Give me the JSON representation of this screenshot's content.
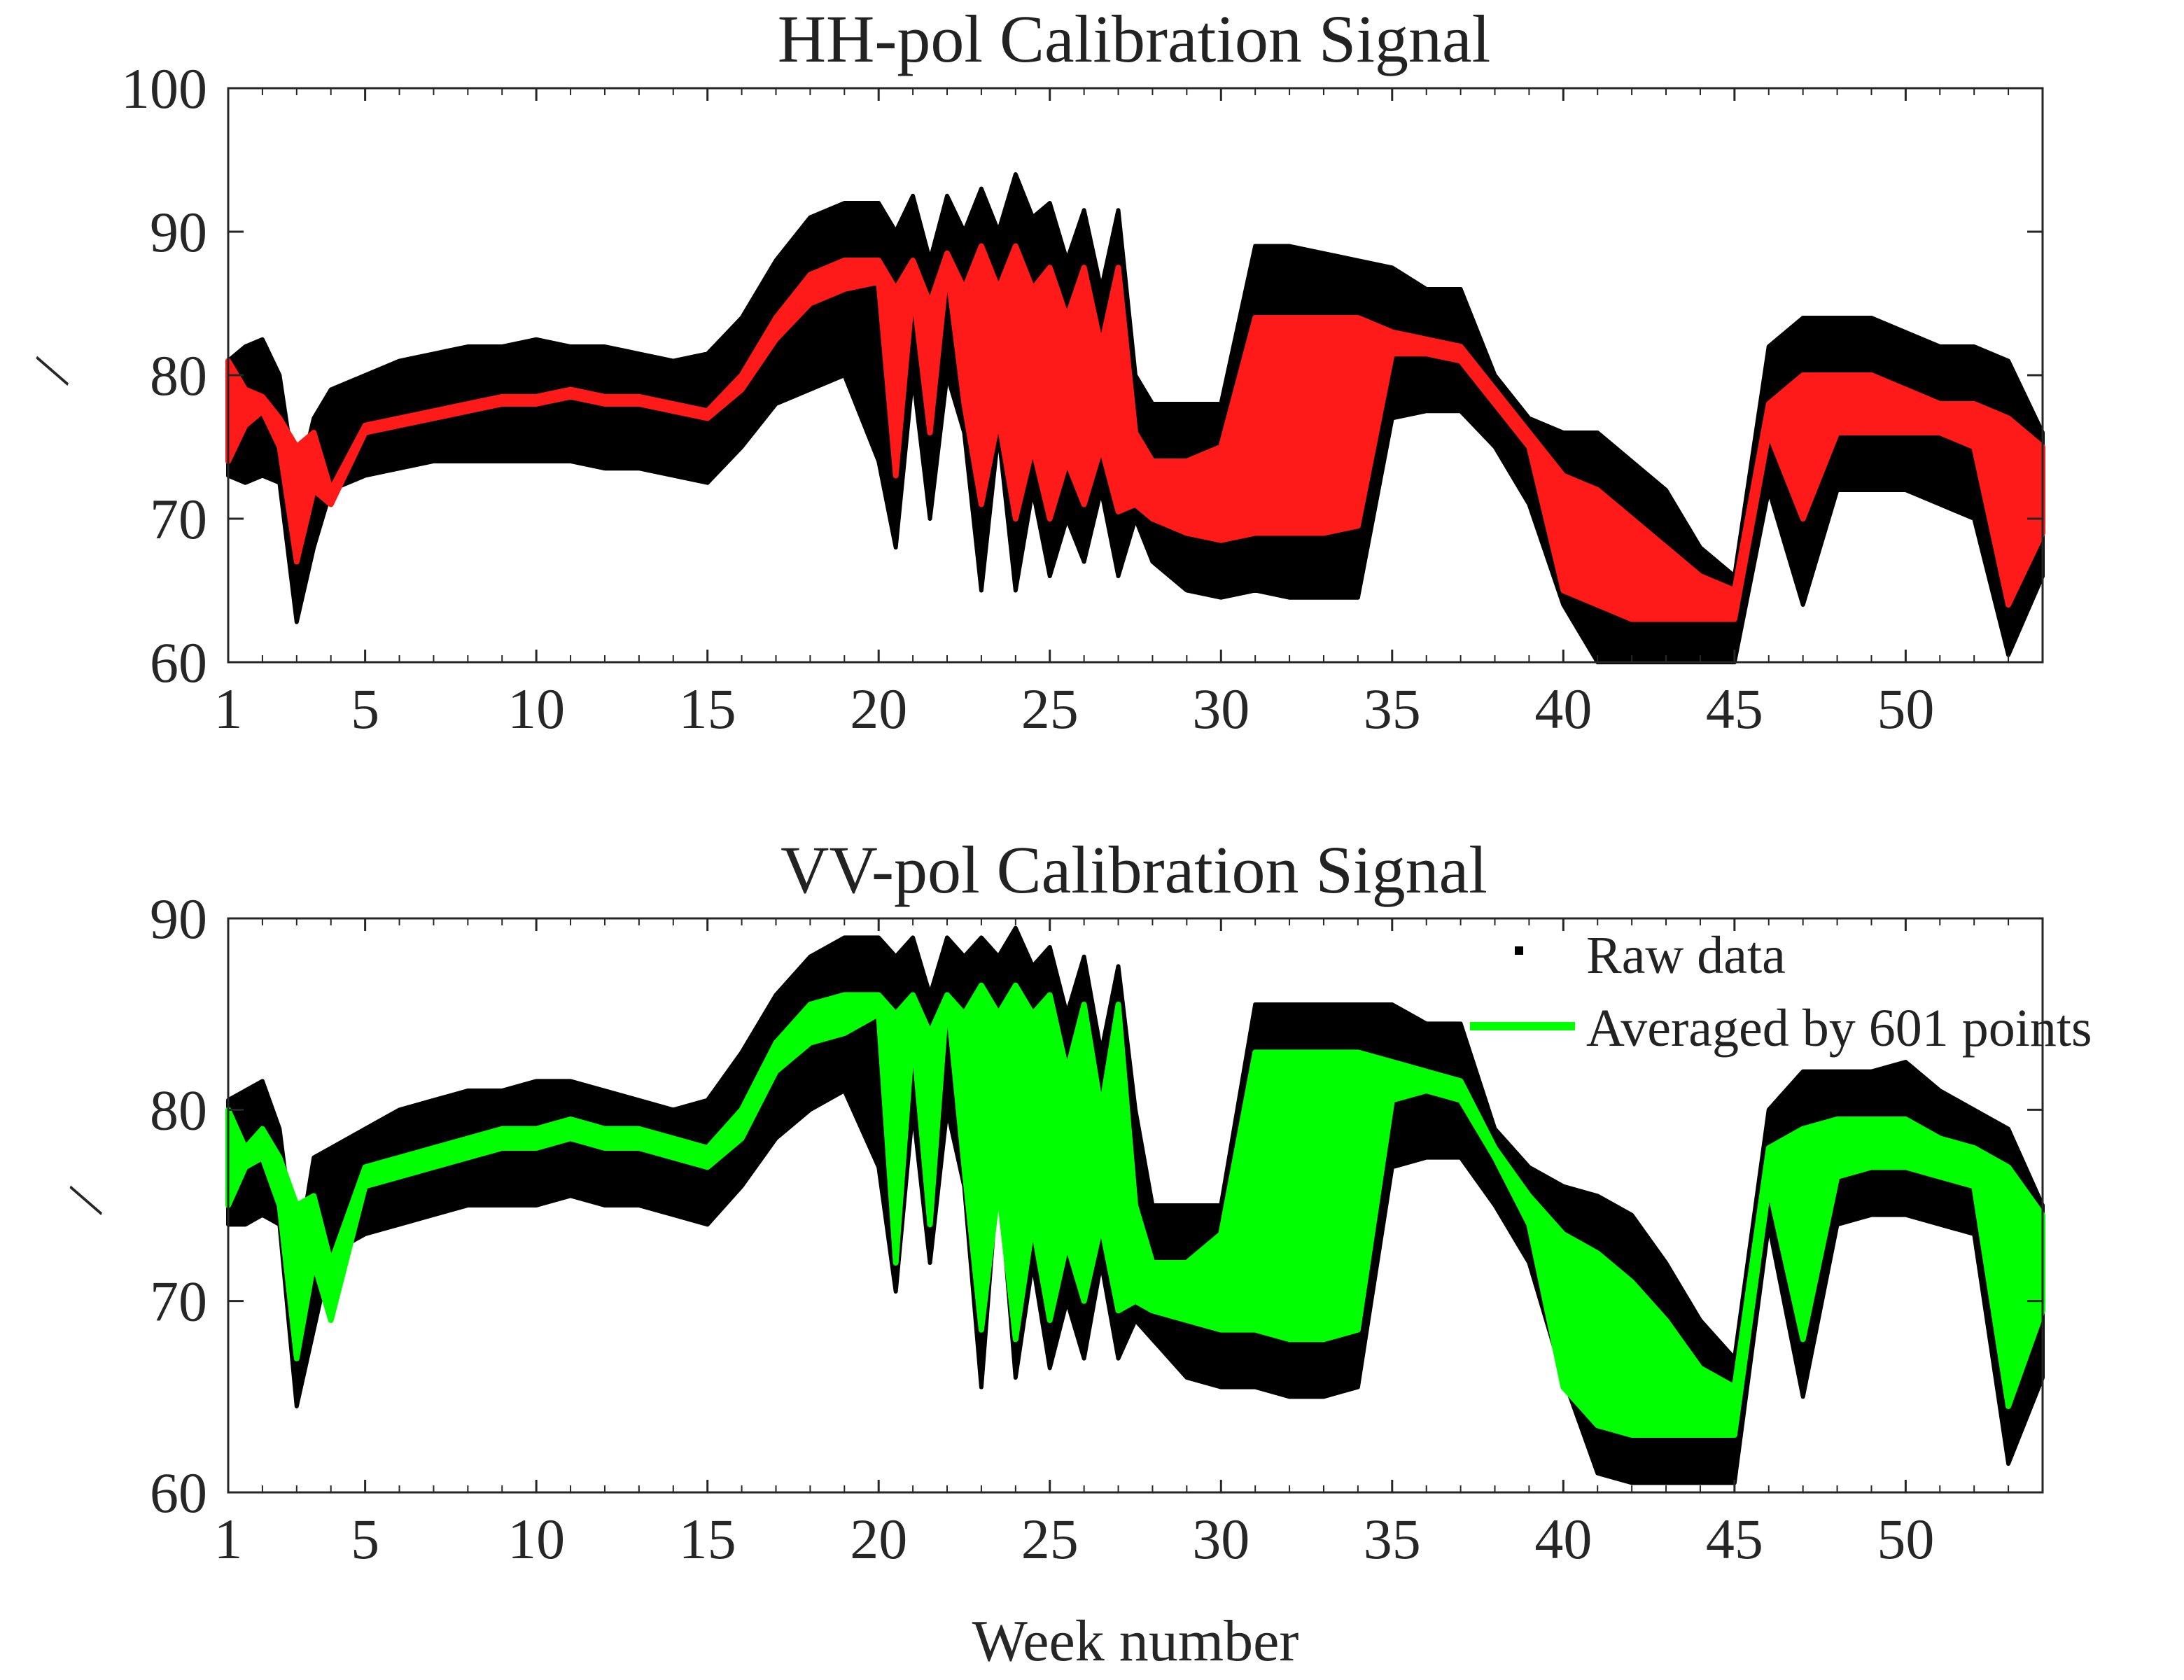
{
  "chart_data": [
    {
      "type": "line",
      "title": "HH-pol Calibration Signal",
      "xlabel": "",
      "ylabel": "/",
      "xlim": [
        1,
        54
      ],
      "ylim": [
        60,
        100
      ],
      "xticks": [
        1,
        5,
        10,
        15,
        20,
        25,
        30,
        35,
        40,
        45,
        50
      ],
      "yticks": [
        60,
        70,
        80,
        90,
        100
      ],
      "x": [
        1,
        1.5,
        2,
        2.5,
        3,
        3.5,
        4,
        5,
        6,
        7,
        8,
        9,
        10,
        11,
        12,
        13,
        14,
        15,
        16,
        17,
        18,
        19,
        20,
        20.5,
        21,
        21.5,
        22,
        22.5,
        23,
        23.5,
        24,
        24.5,
        25,
        25.5,
        26,
        26.5,
        27,
        27.5,
        28,
        29,
        30,
        31,
        32,
        33,
        34,
        35,
        36,
        37,
        38,
        39,
        40,
        41,
        42,
        43,
        44,
        45,
        46,
        47,
        48,
        49,
        50,
        51,
        52,
        53,
        54
      ],
      "series": [
        {
          "name": "Raw data",
          "style": "band",
          "color": "#000000",
          "values_min": [
            73,
            72.5,
            73,
            72.5,
            62.8,
            68,
            72,
            73,
            73.5,
            74,
            74,
            74,
            74,
            74,
            73.5,
            73.5,
            73,
            72.5,
            75,
            78,
            79,
            80,
            74,
            68,
            80,
            70,
            80,
            76,
            65,
            76,
            65,
            72,
            66,
            70,
            67,
            72,
            66,
            70,
            67,
            65,
            64.5,
            65,
            64.5,
            64.5,
            64.5,
            77,
            77.5,
            77.5,
            75,
            71,
            64,
            60,
            60,
            60,
            60,
            60,
            72,
            64,
            72,
            72,
            72,
            71,
            70,
            60.5,
            66
          ],
          "values_max": [
            81,
            82,
            82.5,
            80,
            72,
            77,
            79,
            80,
            81,
            81.5,
            82,
            82,
            82.5,
            82,
            82,
            81.5,
            81,
            81.5,
            84,
            88,
            91,
            92,
            92,
            90,
            92.5,
            88,
            92.5,
            90,
            93,
            90,
            94,
            91,
            92,
            88,
            91.5,
            86,
            91.5,
            80,
            78,
            78,
            78,
            89,
            89,
            88.5,
            88,
            87.5,
            86,
            86,
            80,
            77,
            76,
            76,
            74,
            72,
            68,
            66,
            82,
            84,
            84,
            84,
            83,
            82,
            82,
            81,
            76
          ]
        },
        {
          "name": "Averaged by 601 points",
          "style": "line",
          "color": "#ff1a1a",
          "values_min": [
            74,
            76.5,
            77.5,
            75,
            67,
            72,
            71,
            76,
            76.5,
            77,
            77.5,
            78,
            78,
            78.5,
            78,
            78,
            77.5,
            77,
            79,
            82.5,
            85,
            86,
            86.5,
            73,
            86,
            76,
            87.5,
            78,
            71,
            77,
            70,
            75,
            70,
            74,
            71,
            75,
            70.5,
            71,
            70,
            69,
            68.5,
            69,
            69,
            69,
            69.5,
            81.5,
            81.5,
            81,
            78,
            75,
            65,
            64,
            63,
            63,
            63,
            63,
            76,
            70,
            76,
            76,
            76,
            76,
            75,
            64,
            69
          ],
          "values_max": [
            81,
            79,
            78.5,
            77,
            75,
            76,
            72,
            76.5,
            77,
            77.5,
            78,
            78.5,
            78.5,
            79,
            78.5,
            78.5,
            78,
            77.5,
            80,
            84,
            87,
            88,
            88,
            86,
            88,
            85,
            88.5,
            86,
            89,
            86,
            89,
            86,
            87.5,
            84,
            87.5,
            82,
            87.5,
            76,
            74,
            74,
            75,
            84,
            84,
            84,
            84,
            83,
            82.5,
            82,
            79,
            76,
            73,
            72,
            70,
            68,
            66,
            65,
            78,
            80,
            80,
            80,
            79,
            78,
            78,
            77,
            75
          ]
        }
      ]
    },
    {
      "type": "line",
      "title": "VV-pol Calibration Signal",
      "xlabel": "Week number",
      "ylabel": "/",
      "xlim": [
        1,
        54
      ],
      "ylim": [
        60,
        90
      ],
      "xticks": [
        1,
        5,
        10,
        15,
        20,
        25,
        30,
        35,
        40,
        45,
        50
      ],
      "yticks": [
        60,
        70,
        80,
        90
      ],
      "legend": "top-right",
      "x": [
        1,
        1.5,
        2,
        2.5,
        3,
        3.5,
        4,
        5,
        6,
        7,
        8,
        9,
        10,
        11,
        12,
        13,
        14,
        15,
        16,
        17,
        18,
        19,
        20,
        20.5,
        21,
        21.5,
        22,
        22.5,
        23,
        23.5,
        24,
        24.5,
        25,
        25.5,
        26,
        26.5,
        27,
        27.5,
        28,
        29,
        30,
        31,
        32,
        33,
        34,
        35,
        36,
        37,
        38,
        39,
        40,
        41,
        42,
        43,
        44,
        45,
        46,
        47,
        48,
        49,
        50,
        51,
        52,
        53,
        54
      ],
      "series": [
        {
          "name": "Raw data",
          "style": "band",
          "color": "#000000",
          "values_min": [
            74,
            74,
            74.5,
            74,
            64.5,
            68.5,
            72.5,
            73.5,
            74,
            74.5,
            75,
            75,
            75,
            75.5,
            75,
            75,
            74.5,
            74,
            76,
            78.5,
            80,
            81,
            77,
            70.5,
            80,
            72,
            80,
            76,
            65.5,
            77,
            66,
            72,
            66.5,
            70,
            67,
            72,
            67,
            69,
            68,
            66,
            65.5,
            65.5,
            65,
            65,
            65.5,
            77,
            77.5,
            77.5,
            75,
            72,
            66,
            61,
            60.5,
            60.5,
            60.5,
            60.5,
            74,
            65,
            74,
            74.5,
            74.5,
            74,
            73.5,
            61.5,
            66
          ],
          "values_max": [
            80.5,
            81,
            81.5,
            79,
            72,
            77.5,
            78,
            79,
            80,
            80.5,
            81,
            81,
            81.5,
            81.5,
            81,
            80.5,
            80,
            80.5,
            83,
            86,
            88,
            89,
            89,
            88,
            89,
            86,
            89,
            88,
            89,
            88,
            89.5,
            87.5,
            88.5,
            85,
            88,
            83,
            87.5,
            80,
            75,
            75,
            75,
            85.5,
            85.5,
            85.5,
            85.5,
            85.5,
            84.5,
            84.5,
            79,
            77,
            76,
            75.5,
            74.5,
            72,
            69,
            67,
            80,
            82,
            82,
            82,
            82.5,
            81,
            80,
            79,
            75
          ]
        },
        {
          "name": "Averaged by 601 points",
          "style": "line",
          "color": "#00ff00",
          "values_min": [
            75,
            77,
            77.5,
            75,
            67,
            72,
            69,
            76,
            76.5,
            77,
            77.5,
            78,
            78,
            78.5,
            78,
            78,
            77.5,
            77,
            78.5,
            82,
            83.5,
            84,
            85,
            72,
            84,
            74,
            86,
            77,
            68.5,
            76,
            68,
            74,
            69,
            73,
            70,
            74,
            69.5,
            70,
            69.5,
            69,
            68.5,
            68.5,
            68,
            68,
            68.5,
            80.5,
            81,
            80.5,
            77.5,
            74,
            65.5,
            63.5,
            63,
            63,
            63,
            63,
            76,
            68,
            76.5,
            77,
            77,
            76.5,
            76,
            64.5,
            69.5
          ],
          "values_max": [
            80,
            78,
            79,
            77.5,
            75,
            75.5,
            72,
            77,
            77.5,
            78,
            78.5,
            79,
            79,
            79.5,
            79,
            79,
            78.5,
            78,
            80,
            83.5,
            85.5,
            86,
            86,
            85,
            86,
            84,
            86,
            85,
            86.5,
            85,
            86.5,
            85,
            86,
            82,
            85.5,
            80,
            85.5,
            75,
            72,
            72,
            73.5,
            83,
            83,
            83,
            83,
            82.5,
            82,
            81.5,
            78,
            75.5,
            73.5,
            72.5,
            71,
            69,
            66.5,
            65.5,
            78,
            79,
            79.5,
            79.5,
            79.5,
            78.5,
            78,
            77,
            74.5
          ]
        }
      ]
    }
  ]
}
